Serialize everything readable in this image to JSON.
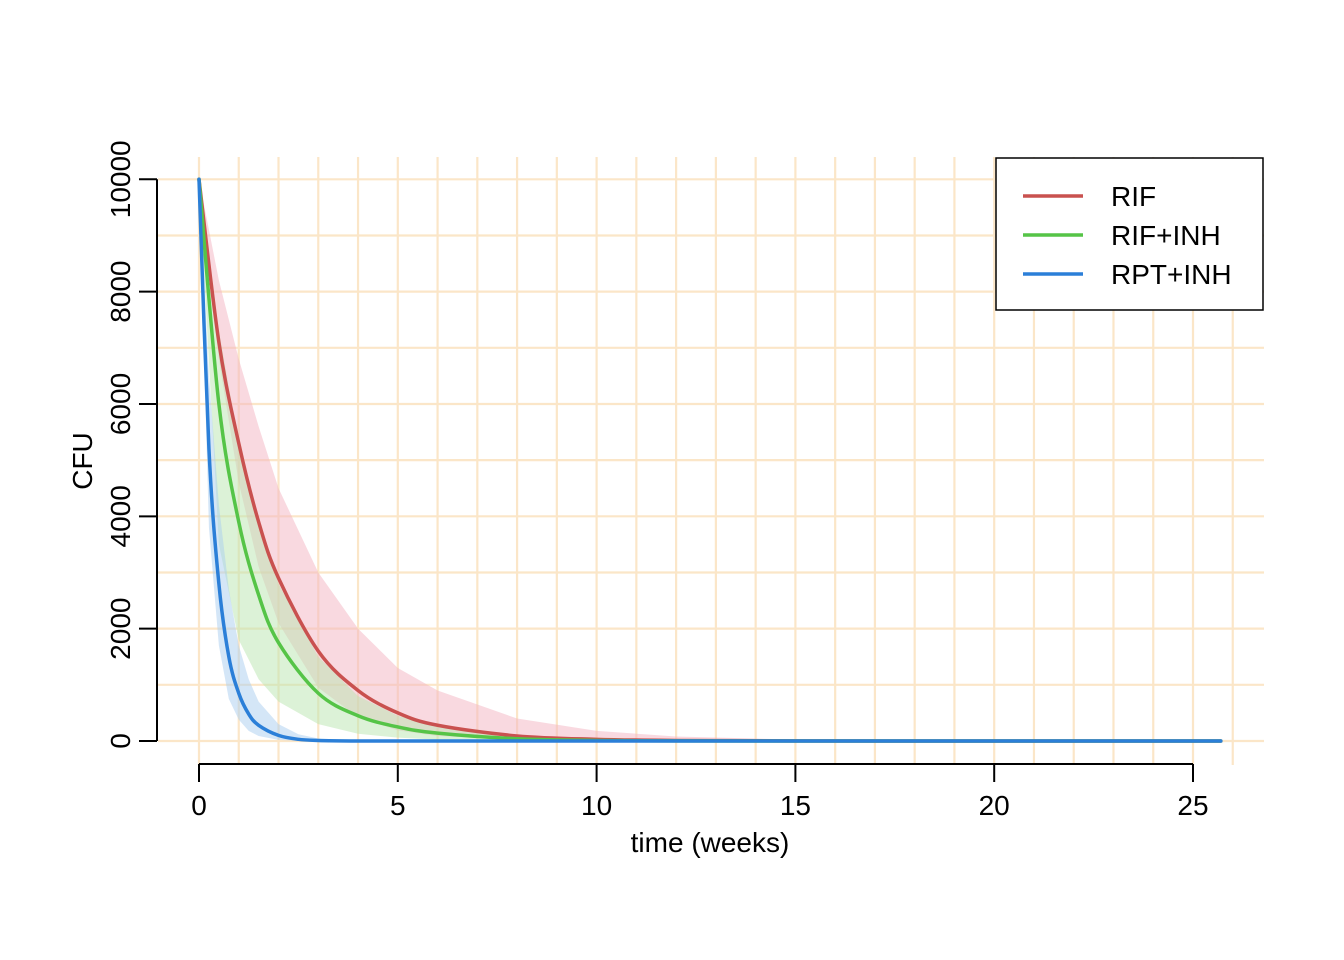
{
  "chart_data": {
    "type": "line",
    "title": "",
    "xlabel": "time (weeks)",
    "ylabel": "CFU",
    "xlim": [
      0,
      26
    ],
    "ylim": [
      0,
      10000
    ],
    "x_ticks": [
      "0",
      "5",
      "10",
      "15",
      "20",
      "25"
    ],
    "y_ticks": [
      "0",
      "2000",
      "4000",
      "6000",
      "8000",
      "10000"
    ],
    "grid": true,
    "legend_position": "top-right",
    "series": [
      {
        "name": "RIF",
        "color": "#c9514f",
        "band_color": "#f4b3c2",
        "x": [
          0,
          0.5,
          1,
          1.5,
          2,
          3,
          4,
          5,
          6,
          8,
          10,
          12,
          15,
          20,
          25.7
        ],
        "y": [
          10000,
          7100,
          5300,
          3900,
          2900,
          1600,
          900,
          500,
          280,
          90,
          30,
          10,
          2,
          0,
          0
        ],
        "lower": [
          10000,
          6800,
          4600,
          3100,
          2100,
          950,
          420,
          190,
          90,
          20,
          5,
          1,
          0,
          0,
          0
        ],
        "upper": [
          10000,
          8200,
          6800,
          5600,
          4500,
          3000,
          2000,
          1300,
          900,
          400,
          180,
          80,
          25,
          2,
          0
        ]
      },
      {
        "name": "RIF+INH",
        "color": "#55c447",
        "band_color": "#b9e6b0",
        "x": [
          0,
          0.5,
          1,
          1.5,
          2,
          3,
          4,
          5,
          6,
          8,
          10,
          12,
          15,
          20,
          25.7
        ],
        "y": [
          10000,
          6000,
          3900,
          2600,
          1750,
          850,
          450,
          250,
          140,
          40,
          10,
          3,
          0,
          0,
          0
        ],
        "lower": [
          10000,
          3500,
          1800,
          1100,
          700,
          300,
          130,
          60,
          25,
          5,
          1,
          0,
          0,
          0,
          0
        ],
        "upper": [
          10000,
          7300,
          5300,
          3900,
          2800,
          1500,
          800,
          450,
          260,
          80,
          25,
          8,
          1,
          0,
          0
        ]
      },
      {
        "name": "RPT+INH",
        "color": "#2b7fd8",
        "band_color": "#aacdf0",
        "x": [
          0,
          0.25,
          0.5,
          0.75,
          1,
          1.25,
          1.5,
          2,
          2.5,
          3,
          4,
          5,
          8,
          15,
          25.7
        ],
        "y": [
          10000,
          5200,
          2800,
          1500,
          850,
          480,
          280,
          100,
          30,
          10,
          1,
          0,
          0,
          0,
          0
        ],
        "lower": [
          10000,
          3800,
          1700,
          750,
          380,
          180,
          90,
          20,
          5,
          1,
          0,
          0,
          0,
          0,
          0
        ],
        "upper": [
          10000,
          6500,
          4200,
          2700,
          1700,
          1100,
          700,
          300,
          120,
          45,
          8,
          1,
          0,
          0,
          0
        ]
      }
    ]
  }
}
